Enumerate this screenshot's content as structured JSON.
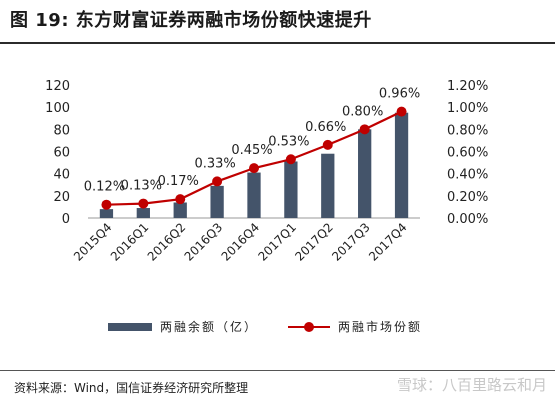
{
  "title": "图 19:  东方财富证券两融市场份额快速提升",
  "source": "资料来源：Wind，国信证券经济研究所整理",
  "watermark": "雪球：八百里路云和月",
  "colors": {
    "bar": "#44546A",
    "line": "#C00000",
    "marker": "#C00000"
  },
  "chart_data": {
    "type": "bar",
    "categories": [
      "2015Q4",
      "2016Q1",
      "2016Q2",
      "2016Q3",
      "2016Q4",
      "2017Q1",
      "2017Q2",
      "2017Q3",
      "2017Q4"
    ],
    "series": [
      {
        "name": "两融余额（亿）",
        "type": "bar",
        "axis": "left",
        "values": [
          8,
          9,
          14,
          29,
          41,
          51,
          58,
          80,
          95
        ]
      },
      {
        "name": "两融市场份额",
        "type": "line",
        "axis": "right",
        "values": [
          0.12,
          0.13,
          0.17,
          0.33,
          0.45,
          0.53,
          0.66,
          0.8,
          0.96
        ],
        "labels": [
          "0.12%",
          "0.13%",
          "0.17%",
          "0.33%",
          "0.45%",
          "0.53%",
          "0.66%",
          "0.80%",
          "0.96%"
        ]
      }
    ],
    "y_left": {
      "ylim": [
        0,
        120
      ],
      "ticks": [
        "0",
        "20",
        "40",
        "60",
        "80",
        "100",
        "120"
      ]
    },
    "y_right": {
      "ylim": [
        0,
        1.2
      ],
      "ticks": [
        "0.00%",
        "0.20%",
        "0.40%",
        "0.60%",
        "0.80%",
        "1.00%",
        "1.20%"
      ]
    },
    "legend_position": "bottom",
    "grid": false
  }
}
